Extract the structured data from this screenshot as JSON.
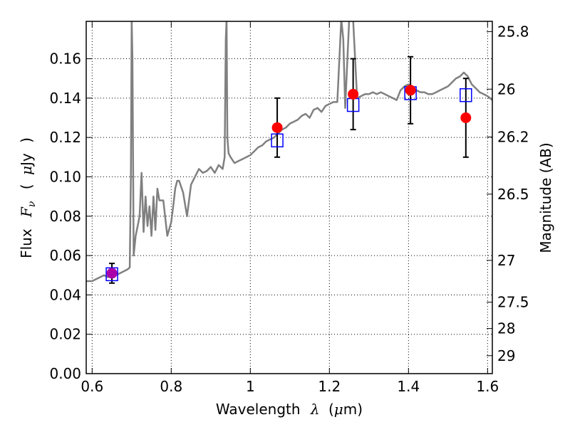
{
  "chart_data": {
    "type": "line",
    "xlabel_text": "Wavelength",
    "xlabel_symbol": "λ",
    "xlabel_unit_open": "(",
    "xlabel_unit_mu": "μ",
    "xlabel_unit_rest": "m)",
    "ylabel_text": "Flux",
    "ylabel_symbol_main": "F",
    "ylabel_symbol_sub": "ν",
    "ylabel_unit_open": "(",
    "ylabel_unit_mu": "μ",
    "ylabel_unit_rest": "Jy",
    "ylabel_unit_close": ")",
    "y2label": "Magnitude (AB)",
    "xlim": [
      0.585,
      1.612
    ],
    "ylim": [
      0.0,
      0.179
    ],
    "grid": true,
    "x_ticks": [
      0.6,
      0.8,
      1.0,
      1.2,
      1.4,
      1.6
    ],
    "x_tick_labels": [
      "0.6",
      "0.8",
      "1",
      "1.2",
      "1.4",
      "1.6"
    ],
    "y_ticks": [
      0.0,
      0.02,
      0.04,
      0.06,
      0.08,
      0.1,
      0.12,
      0.14,
      0.16
    ],
    "y_tick_labels": [
      "0.00",
      "0.02",
      "0.04",
      "0.06",
      "0.08",
      "0.10",
      "0.12",
      "0.14",
      "0.16"
    ],
    "mag_ticks": [
      25.8,
      26,
      26.2,
      26.5,
      27,
      27.5,
      28,
      29
    ],
    "mag_tick_labels": [
      "25.8",
      "26",
      "26.2",
      "26.5",
      "27",
      "27.5",
      "28",
      "29"
    ],
    "template_color": "#808080",
    "observed_color": "#ff0000",
    "model_color": "#0000ff",
    "template_spectrum": {
      "x": [
        0.585,
        0.6,
        0.61,
        0.62,
        0.63,
        0.64,
        0.65,
        0.66,
        0.67,
        0.68,
        0.69,
        0.695,
        0.698,
        0.7,
        0.702,
        0.705,
        0.71,
        0.715,
        0.72,
        0.725,
        0.73,
        0.735,
        0.74,
        0.745,
        0.75,
        0.755,
        0.76,
        0.765,
        0.77,
        0.78,
        0.79,
        0.8,
        0.805,
        0.81,
        0.815,
        0.82,
        0.83,
        0.84,
        0.85,
        0.86,
        0.87,
        0.88,
        0.89,
        0.9,
        0.91,
        0.92,
        0.93,
        0.935,
        0.938,
        0.94,
        0.942,
        0.945,
        0.95,
        0.96,
        0.97,
        0.98,
        0.99,
        1.0,
        1.01,
        1.02,
        1.03,
        1.04,
        1.05,
        1.06,
        1.07,
        1.08,
        1.09,
        1.1,
        1.11,
        1.12,
        1.13,
        1.14,
        1.15,
        1.16,
        1.17,
        1.18,
        1.19,
        1.2,
        1.21,
        1.22,
        1.23,
        1.235,
        1.24,
        1.25,
        1.26,
        1.265,
        1.27,
        1.28,
        1.29,
        1.3,
        1.31,
        1.32,
        1.33,
        1.34,
        1.35,
        1.36,
        1.37,
        1.38,
        1.39,
        1.4,
        1.41,
        1.42,
        1.43,
        1.44,
        1.45,
        1.46,
        1.47,
        1.48,
        1.49,
        1.5,
        1.51,
        1.52,
        1.53,
        1.54,
        1.55,
        1.56,
        1.57,
        1.58,
        1.59,
        1.6,
        1.612
      ],
      "y": [
        0.047,
        0.047,
        0.048,
        0.049,
        0.05,
        0.049,
        0.05,
        0.05,
        0.051,
        0.052,
        0.053,
        0.054,
        0.1,
        0.18,
        0.16,
        0.06,
        0.07,
        0.075,
        0.08,
        0.102,
        0.072,
        0.09,
        0.075,
        0.085,
        0.07,
        0.09,
        0.073,
        0.094,
        0.088,
        0.088,
        0.07,
        0.077,
        0.085,
        0.094,
        0.098,
        0.098,
        0.092,
        0.08,
        0.096,
        0.1,
        0.104,
        0.102,
        0.103,
        0.105,
        0.102,
        0.106,
        0.104,
        0.11,
        0.17,
        0.18,
        0.12,
        0.112,
        0.11,
        0.107,
        0.108,
        0.109,
        0.11,
        0.111,
        0.113,
        0.115,
        0.116,
        0.118,
        0.119,
        0.12,
        0.122,
        0.124,
        0.125,
        0.127,
        0.128,
        0.129,
        0.131,
        0.132,
        0.13,
        0.134,
        0.135,
        0.133,
        0.136,
        0.137,
        0.138,
        0.138,
        0.18,
        0.17,
        0.135,
        0.18,
        0.18,
        0.16,
        0.14,
        0.141,
        0.142,
        0.142,
        0.143,
        0.142,
        0.143,
        0.142,
        0.141,
        0.14,
        0.139,
        0.144,
        0.146,
        0.147,
        0.145,
        0.144,
        0.143,
        0.143,
        0.142,
        0.142,
        0.143,
        0.144,
        0.145,
        0.146,
        0.148,
        0.15,
        0.151,
        0.153,
        0.151,
        0.147,
        0.145,
        0.143,
        0.142,
        0.141,
        0.139
      ]
    },
    "observed": {
      "x": [
        0.65,
        1.068,
        1.26,
        1.405,
        1.545
      ],
      "y": [
        0.051,
        0.125,
        0.142,
        0.144,
        0.13
      ],
      "err": [
        0.005,
        0.015,
        0.018,
        0.017,
        0.02
      ]
    },
    "model": {
      "x": [
        0.65,
        1.068,
        1.26,
        1.405,
        1.545
      ],
      "y": [
        0.0505,
        0.1185,
        0.1365,
        0.1425,
        0.1415
      ]
    }
  }
}
